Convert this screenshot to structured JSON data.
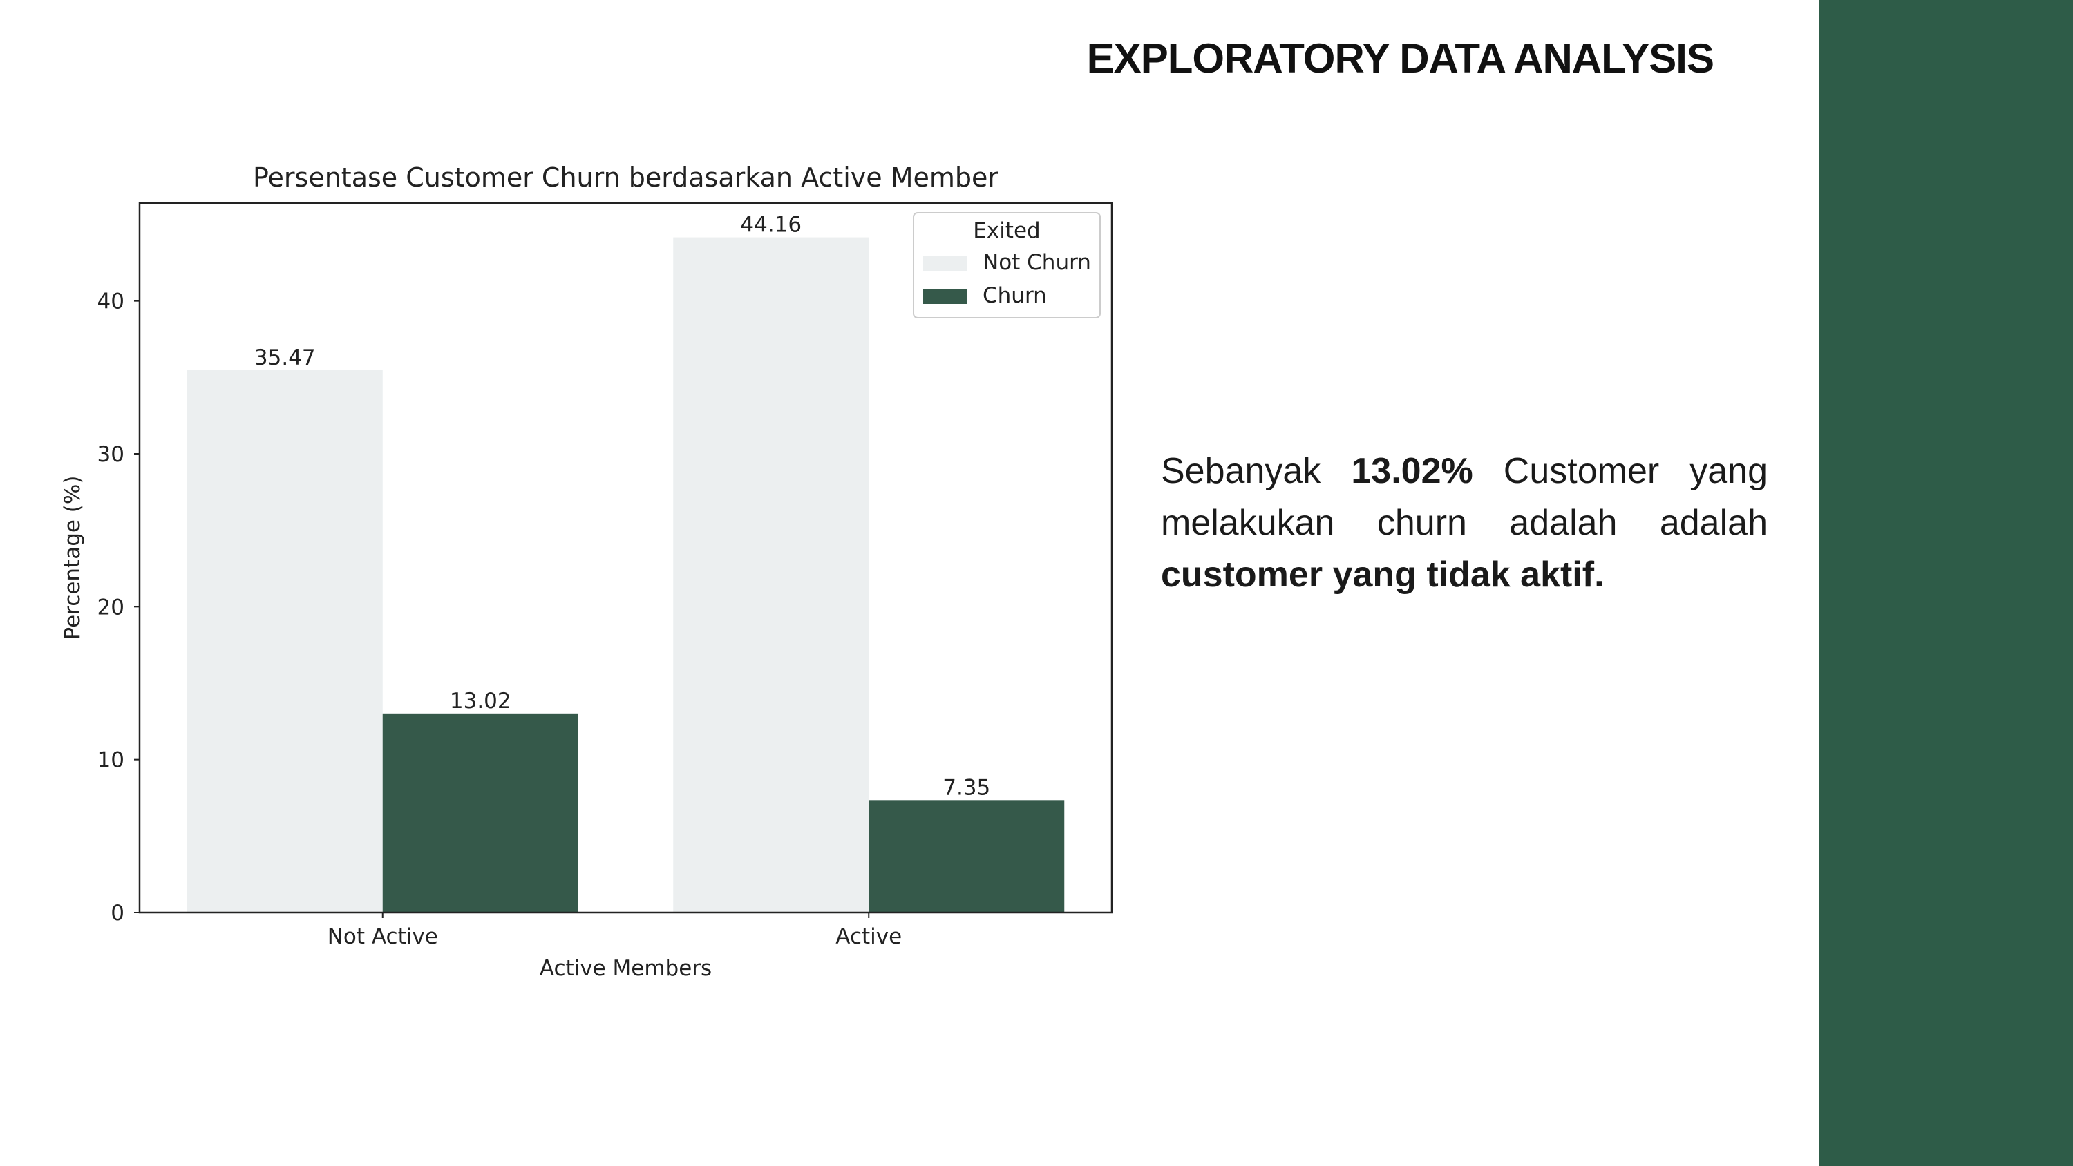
{
  "slide": {
    "title": "EXPLORATORY DATA ANALYSIS"
  },
  "description": {
    "part1": "Sebanyak ",
    "highlight": "13.02%",
    "part2": " Customer yang melakukan churn adalah adalah ",
    "emphasis": "customer yang tidak aktif."
  },
  "colors": {
    "not_churn": "#eceff0",
    "churn": "#35594a",
    "side_band": "#2e5c48"
  },
  "chart_data": {
    "type": "bar",
    "title": "Persentase Customer Churn berdasarkan Active Member",
    "xlabel": "Active Members",
    "ylabel": "Percentage (%)",
    "categories": [
      "Not Active",
      "Active"
    ],
    "ylim": [
      0,
      46.4
    ],
    "yticks": [
      0,
      10,
      20,
      30,
      40
    ],
    "grid": false,
    "legend": {
      "title": "Exited",
      "position": "top-right"
    },
    "series": [
      {
        "name": "Not Churn",
        "values": [
          35.47,
          44.16
        ],
        "labels": [
          "35.47",
          "44.16"
        ]
      },
      {
        "name": "Churn",
        "values": [
          13.02,
          7.35
        ],
        "labels": [
          "13.02",
          "7.35"
        ]
      }
    ]
  }
}
